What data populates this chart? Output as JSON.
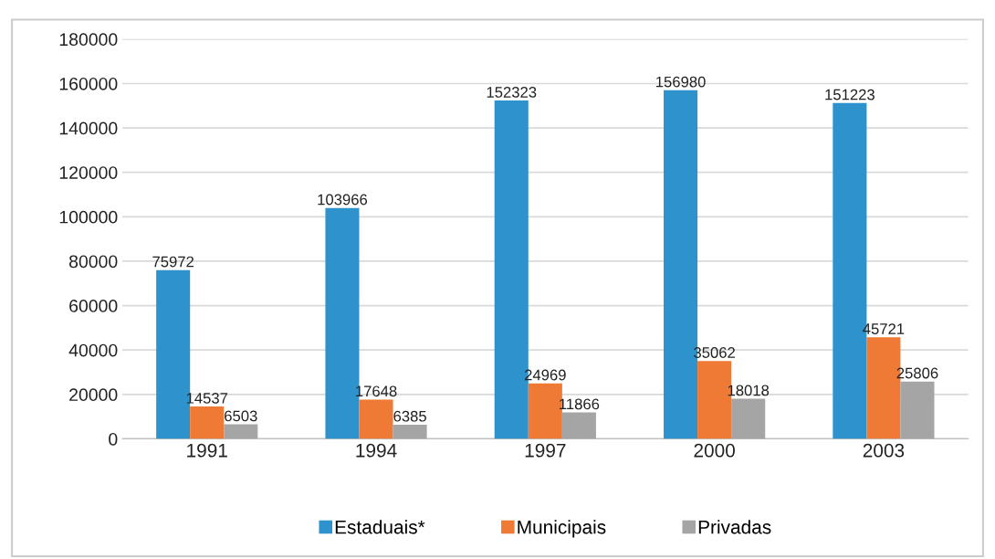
{
  "chart_data": {
    "type": "bar",
    "categories": [
      "1991",
      "1994",
      "1997",
      "2000",
      "2003"
    ],
    "series": [
      {
        "name": "Estaduais*",
        "color": "#2e93cc",
        "values": [
          75972,
          103966,
          152323,
          156980,
          151223
        ]
      },
      {
        "name": "Municipais",
        "color": "#ee7a35",
        "values": [
          14537,
          17648,
          24969,
          35062,
          45721
        ]
      },
      {
        "name": "Privadas",
        "color": "#a5a5a5",
        "values": [
          6503,
          6385,
          11866,
          18018,
          25806
        ]
      }
    ],
    "ylim": [
      0,
      180000
    ],
    "yticks": [
      0,
      20000,
      40000,
      60000,
      80000,
      100000,
      120000,
      140000,
      160000,
      180000
    ],
    "grid": "y",
    "legend": "bottom",
    "data_labels": true
  }
}
